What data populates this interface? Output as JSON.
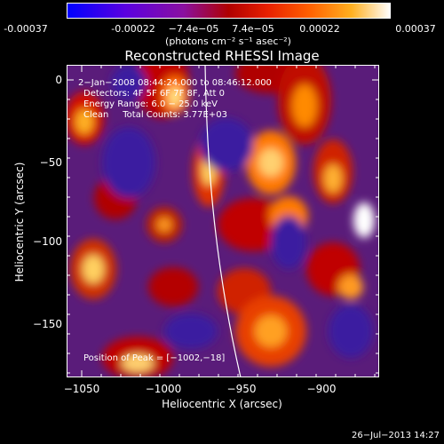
{
  "colorbar": {
    "ticks": [
      "-0.00037",
      "-0.00022",
      "−7.4e−05",
      "7.4e−05",
      "0.00022",
      "0.00037"
    ],
    "units": "(photons cm⁻² s⁻¹ asec⁻²)",
    "colormap": [
      "#0000ff",
      "#6a00d8",
      "#a0005a",
      "#c00000",
      "#ff4000",
      "#ff9a00",
      "#ffe070",
      "#ffffff"
    ]
  },
  "plot": {
    "title": "Reconstructed RHESSI Image",
    "xlabel": "Heliocentric X (arcsec)",
    "ylabel": "Heliocentric Y (arcsec)",
    "xticks": [
      "−1050",
      "−1000",
      "−950",
      "−900"
    ],
    "yticks": [
      "0",
      "−50",
      "−100",
      "−150"
    ],
    "annotations": {
      "time": "2−Jan−2008 08:44:24.000 to 08:46:12.000",
      "detectors": "Detectors: 4F 5F 6F 7F 8F, Att 0",
      "energy": "Energy Range: 6.0 − 25.0 keV",
      "clean": "Clean     Total Counts: 3.77E+03",
      "peak": "Position of Peak = [−1002,−18]"
    }
  },
  "footer": {
    "date": "26−Jul−2013 14:27"
  }
}
